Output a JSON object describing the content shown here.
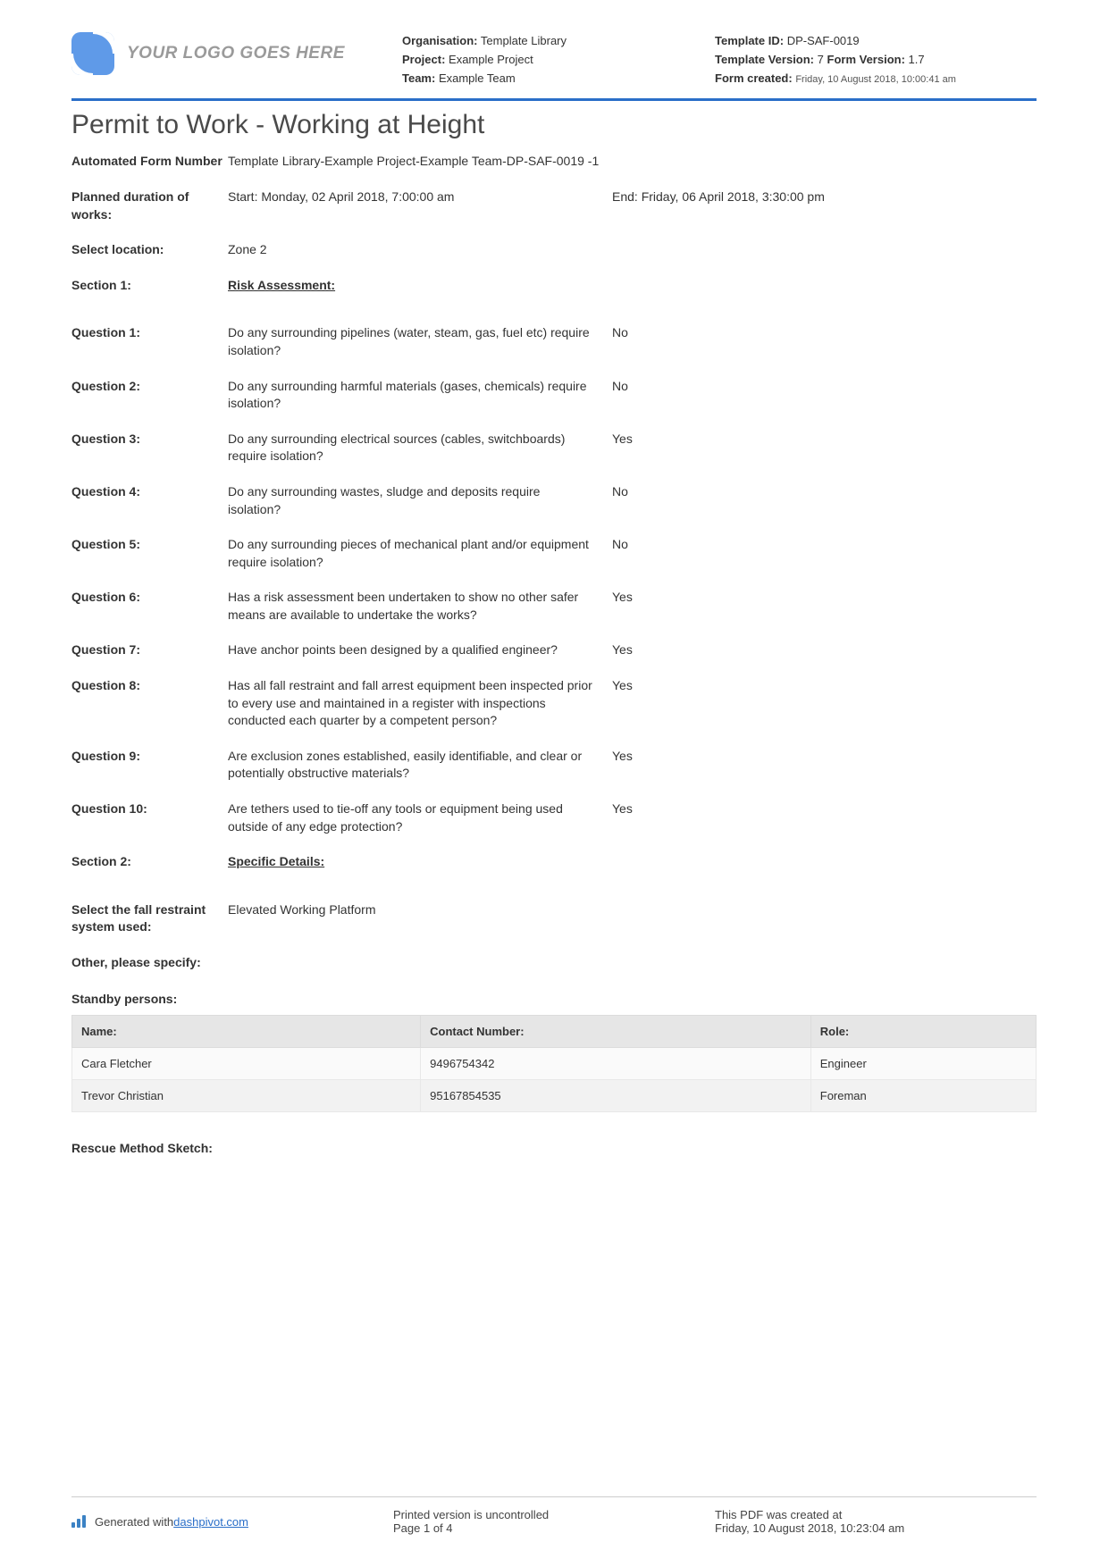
{
  "header": {
    "logo_text": "YOUR LOGO GOES HERE",
    "left": {
      "org_label": "Organisation:",
      "org": "Template Library",
      "project_label": "Project:",
      "project": "Example Project",
      "team_label": "Team:",
      "team": "Example Team"
    },
    "right": {
      "tid_label": "Template ID:",
      "tid": "DP-SAF-0019",
      "tver_label": "Template Version:",
      "tver": "7",
      "fver_label": "Form Version:",
      "fver": "1.7",
      "created_label": "Form created:",
      "created": "Friday, 10 August 2018, 10:00:41 am"
    }
  },
  "title": "Permit to Work - Working at Height",
  "form_number": {
    "label": "Automated Form Number",
    "value": "Template Library-Example Project-Example Team-DP-SAF-0019   -1"
  },
  "duration": {
    "label": "Planned duration of works:",
    "start": "Start: Monday, 02 April 2018, 7:00:00 am",
    "end": "End: Friday, 06 April 2018, 3:30:00 pm"
  },
  "location": {
    "label": "Select location:",
    "value": "Zone 2"
  },
  "section1": {
    "label": "Section 1:",
    "name": "Risk Assessment:"
  },
  "questions": [
    {
      "label": "Question 1:",
      "text": "Do any surrounding pipelines (water, steam, gas, fuel etc) require isolation?",
      "answer": "No"
    },
    {
      "label": "Question 2:",
      "text": "Do any surrounding harmful materials (gases, chemicals) require isolation?",
      "answer": "No"
    },
    {
      "label": "Question 3:",
      "text": "Do any surrounding electrical sources (cables, switchboards) require isolation?",
      "answer": "Yes"
    },
    {
      "label": "Question 4:",
      "text": "Do any surrounding wastes, sludge and deposits require isolation?",
      "answer": "No"
    },
    {
      "label": "Question 5:",
      "text": "Do any surrounding pieces of mechanical plant and/or equipment require isolation?",
      "answer": "No"
    },
    {
      "label": "Question 6:",
      "text": "Has a risk assessment been undertaken to show no other safer means are available to undertake the works?",
      "answer": "Yes"
    },
    {
      "label": "Question 7:",
      "text": "Have anchor points been designed by a qualified engineer?",
      "answer": "Yes"
    },
    {
      "label": "Question 8:",
      "text": "Has all fall restraint and fall arrest equipment been inspected prior to every use and maintained in a register with inspections conducted each quarter by a competent person?",
      "answer": "Yes"
    },
    {
      "label": "Question 9:",
      "text": "Are exclusion zones established, easily identifiable, and clear or potentially obstructive materials?",
      "answer": "Yes"
    },
    {
      "label": "Question 10:",
      "text": "Are tethers used to tie-off any tools or equipment being used outside of any edge protection?",
      "answer": "Yes"
    }
  ],
  "section2": {
    "label": "Section 2:",
    "name": "Specific Details:"
  },
  "fall_restraint": {
    "label": "Select the fall restraint system used:",
    "value": "Elevated Working Platform"
  },
  "other_specify": {
    "label": "Other, please specify:"
  },
  "standby": {
    "title": "Standby persons:",
    "columns": [
      "Name:",
      "Contact Number:",
      "Role:"
    ],
    "rows": [
      [
        "Cara Fletcher",
        "9496754342",
        "Engineer"
      ],
      [
        "Trevor Christian",
        "95167854535",
        "Foreman"
      ]
    ]
  },
  "rescue": {
    "label": "Rescue Method Sketch:"
  },
  "footer": {
    "gen_prefix": "Generated with ",
    "gen_link": "dashpivot.com",
    "uncontrolled": "Printed version is uncontrolled",
    "page": "Page 1 of 4",
    "created_label": "This PDF was created at",
    "created_at": "Friday, 10 August 2018, 10:23:04 am"
  },
  "colors": {
    "accent": "#2a6ec8",
    "logo_bg": "#5f9ae8",
    "text": "#333333",
    "header_th": "#e6e6e6"
  }
}
